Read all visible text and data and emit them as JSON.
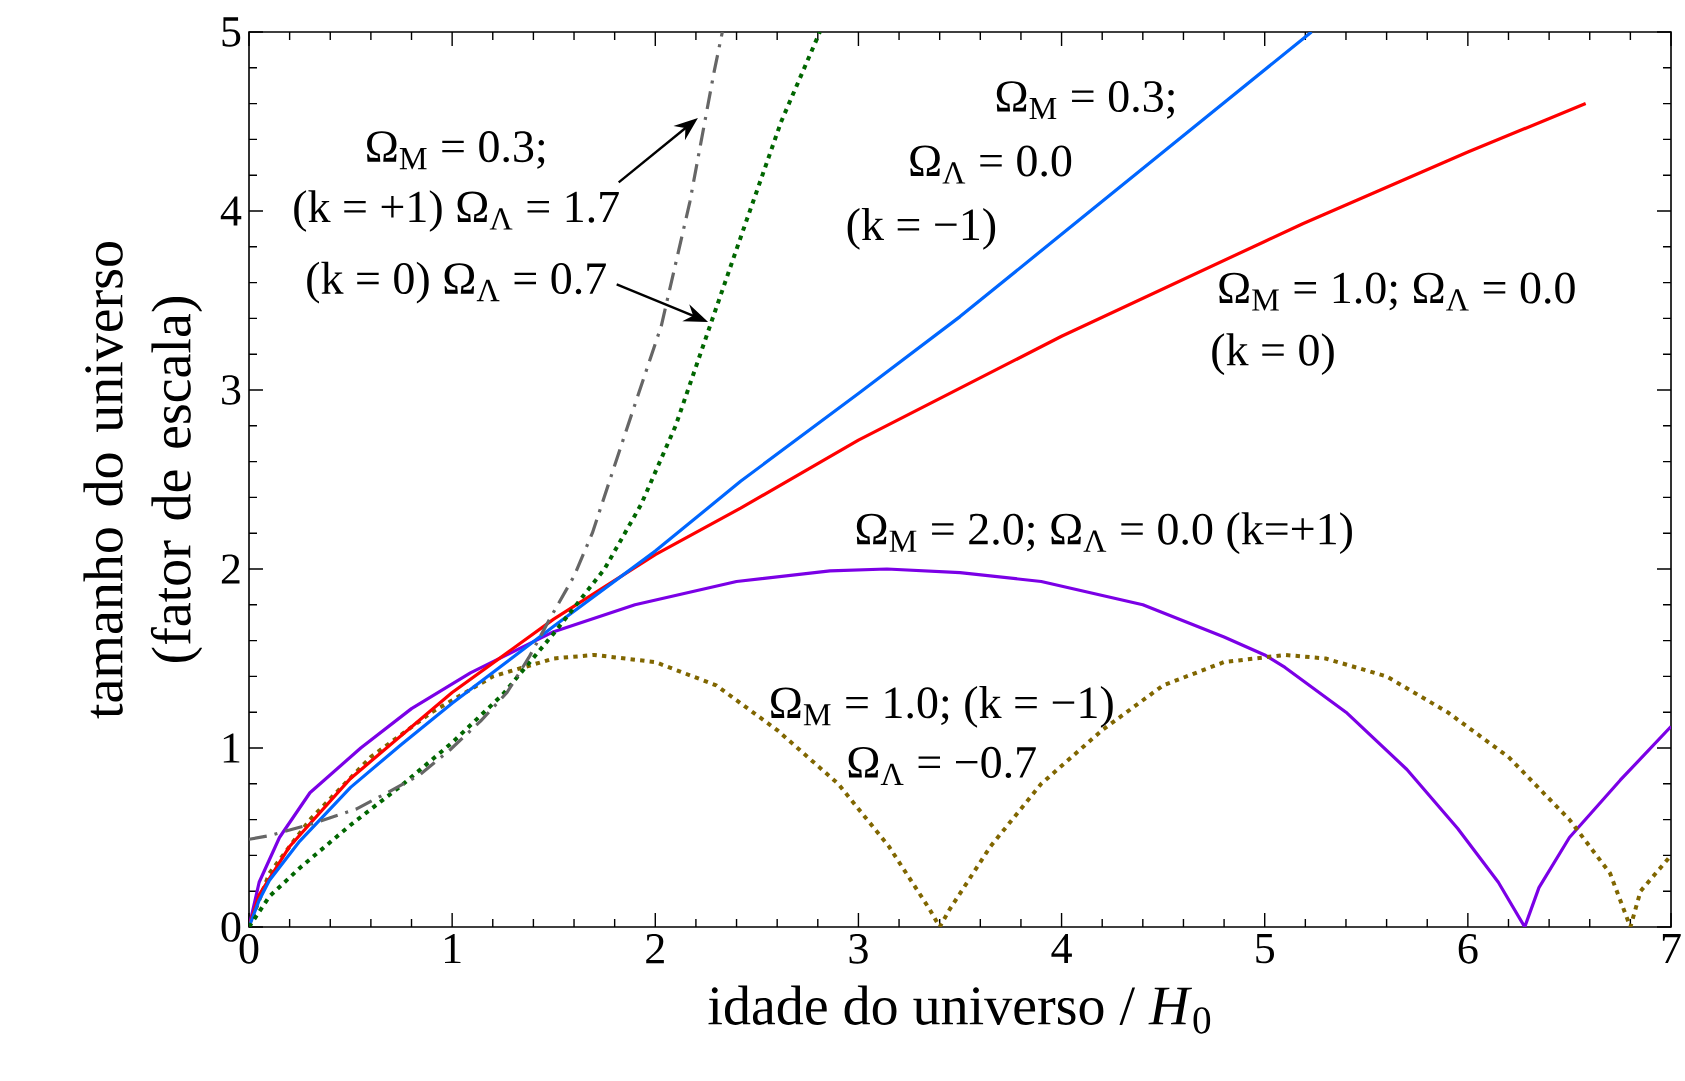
{
  "chart_data": {
    "type": "line",
    "xlabel": "idade do universo / *H*$_{0}$",
    "ylabel": "tamanho do universo (fator de escala)",
    "xlim": [
      0,
      7
    ],
    "ylim": [
      0,
      5
    ],
    "xticks": [
      0,
      1,
      2,
      3,
      4,
      5,
      6,
      7
    ],
    "yticks": [
      0,
      1,
      2,
      3,
      4,
      5
    ],
    "series": [
      {
        "color": "#7b00e6",
        "line_style": "solid",
        "x": [
          0,
          0.05,
          0.15,
          0.3,
          0.55,
          0.8,
          1.09,
          1.5,
          1.9,
          2.4,
          2.86,
          3.14,
          3.5,
          3.9,
          4.4,
          4.8,
          5.0,
          5.1,
          5.4,
          5.7,
          5.95,
          6.15,
          6.28,
          6.35,
          6.5,
          6.75,
          7
        ],
        "values": [
          0,
          0.25,
          0.5,
          0.75,
          1.0,
          1.22,
          1.42,
          1.65,
          1.8,
          1.93,
          1.99,
          2.0,
          1.98,
          1.93,
          1.8,
          1.62,
          1.52,
          1.45,
          1.2,
          0.88,
          0.55,
          0.25,
          0,
          0.22,
          0.5,
          0.82,
          1.12
        ]
      },
      {
        "color": "#806600",
        "line_style": "dotted",
        "x": [
          0,
          0.1,
          0.3,
          0.6,
          0.9,
          1.2,
          1.5,
          1.7,
          2.0,
          2.3,
          2.6,
          2.9,
          3.15,
          3.35,
          3.4,
          3.45,
          3.65,
          3.9,
          4.2,
          4.5,
          4.8,
          5.1,
          5.3,
          5.6,
          5.9,
          6.2,
          6.5,
          6.7,
          6.8,
          6.85,
          7
        ],
        "values": [
          0,
          0.3,
          0.6,
          0.95,
          1.2,
          1.4,
          1.5,
          1.52,
          1.48,
          1.35,
          1.1,
          0.8,
          0.45,
          0.1,
          0,
          0.1,
          0.45,
          0.8,
          1.1,
          1.35,
          1.48,
          1.52,
          1.5,
          1.4,
          1.2,
          0.95,
          0.6,
          0.3,
          0,
          0.2,
          0.4
        ]
      },
      {
        "color": "#ff0000",
        "line_style": "solid",
        "x": [
          0,
          0.05,
          0.2,
          0.5,
          1,
          1.5,
          2,
          2.42,
          3,
          4,
          5,
          5.19,
          6,
          6.58
        ],
        "values": [
          0,
          0.18,
          0.45,
          0.83,
          1.31,
          1.72,
          2.08,
          2.34,
          2.72,
          3.3,
          3.83,
          3.93,
          4.33,
          4.6
        ]
      },
      {
        "color": "#0066ff",
        "line_style": "solid",
        "x": [
          0,
          0.05,
          0.1,
          0.25,
          0.5,
          0.75,
          1,
          1.5,
          2,
          2.42,
          3,
          3.5,
          4,
          4.5,
          5.23
        ],
        "values": [
          0,
          0.15,
          0.26,
          0.48,
          0.78,
          1.02,
          1.25,
          1.68,
          2.1,
          2.49,
          2.98,
          3.41,
          3.87,
          4.33,
          5.0
        ]
      },
      {
        "color": "#006600",
        "line_style": "dotted",
        "x": [
          0,
          0.1,
          0.25,
          0.5,
          0.75,
          1,
          1.25,
          1.5,
          1.75,
          1.93,
          2.1,
          2.27,
          2.45,
          2.62,
          2.81
        ],
        "values": [
          0,
          0.17,
          0.33,
          0.57,
          0.79,
          1.03,
          1.3,
          1.64,
          2.0,
          2.36,
          2.8,
          3.36,
          3.95,
          4.5,
          5.0
        ]
      },
      {
        "color": "#666666",
        "line_style": "dashdot",
        "x": [
          0,
          0.1,
          0.32,
          0.53,
          0.68,
          0.84,
          0.99,
          1.14,
          1.27,
          1.38,
          1.48,
          1.6,
          1.69,
          1.85,
          2.03,
          2.17,
          2.29,
          2.33
        ],
        "values": [
          0.49,
          0.51,
          0.58,
          0.66,
          0.75,
          0.85,
          0.99,
          1.15,
          1.31,
          1.51,
          1.72,
          1.96,
          2.2,
          2.75,
          3.36,
          4.05,
          4.78,
          5.0
        ]
      }
    ],
    "annotations": [
      "Ω$_{M}$ = 0.3;",
      "(k = +1) Ω$_{Λ}$ = 1.7",
      "(k = 0) Ω$_{Λ}$ = 0.7",
      "Ω$_{M}$ = 0.3;",
      "Ω$_{Λ}$ = 0.0",
      "(k = −1)",
      "Ω$_{M}$ = 1.0; Ω$_{Λ}$ = 0.0",
      "(k = 0)",
      "Ω$_{M}$ = 2.0; Ω$_{Λ}$ = 0.0 (k=+1)",
      "Ω$_{M}$ = 1.0; (k = −1)",
      "Ω$_{Λ}$ = −0.7"
    ]
  }
}
